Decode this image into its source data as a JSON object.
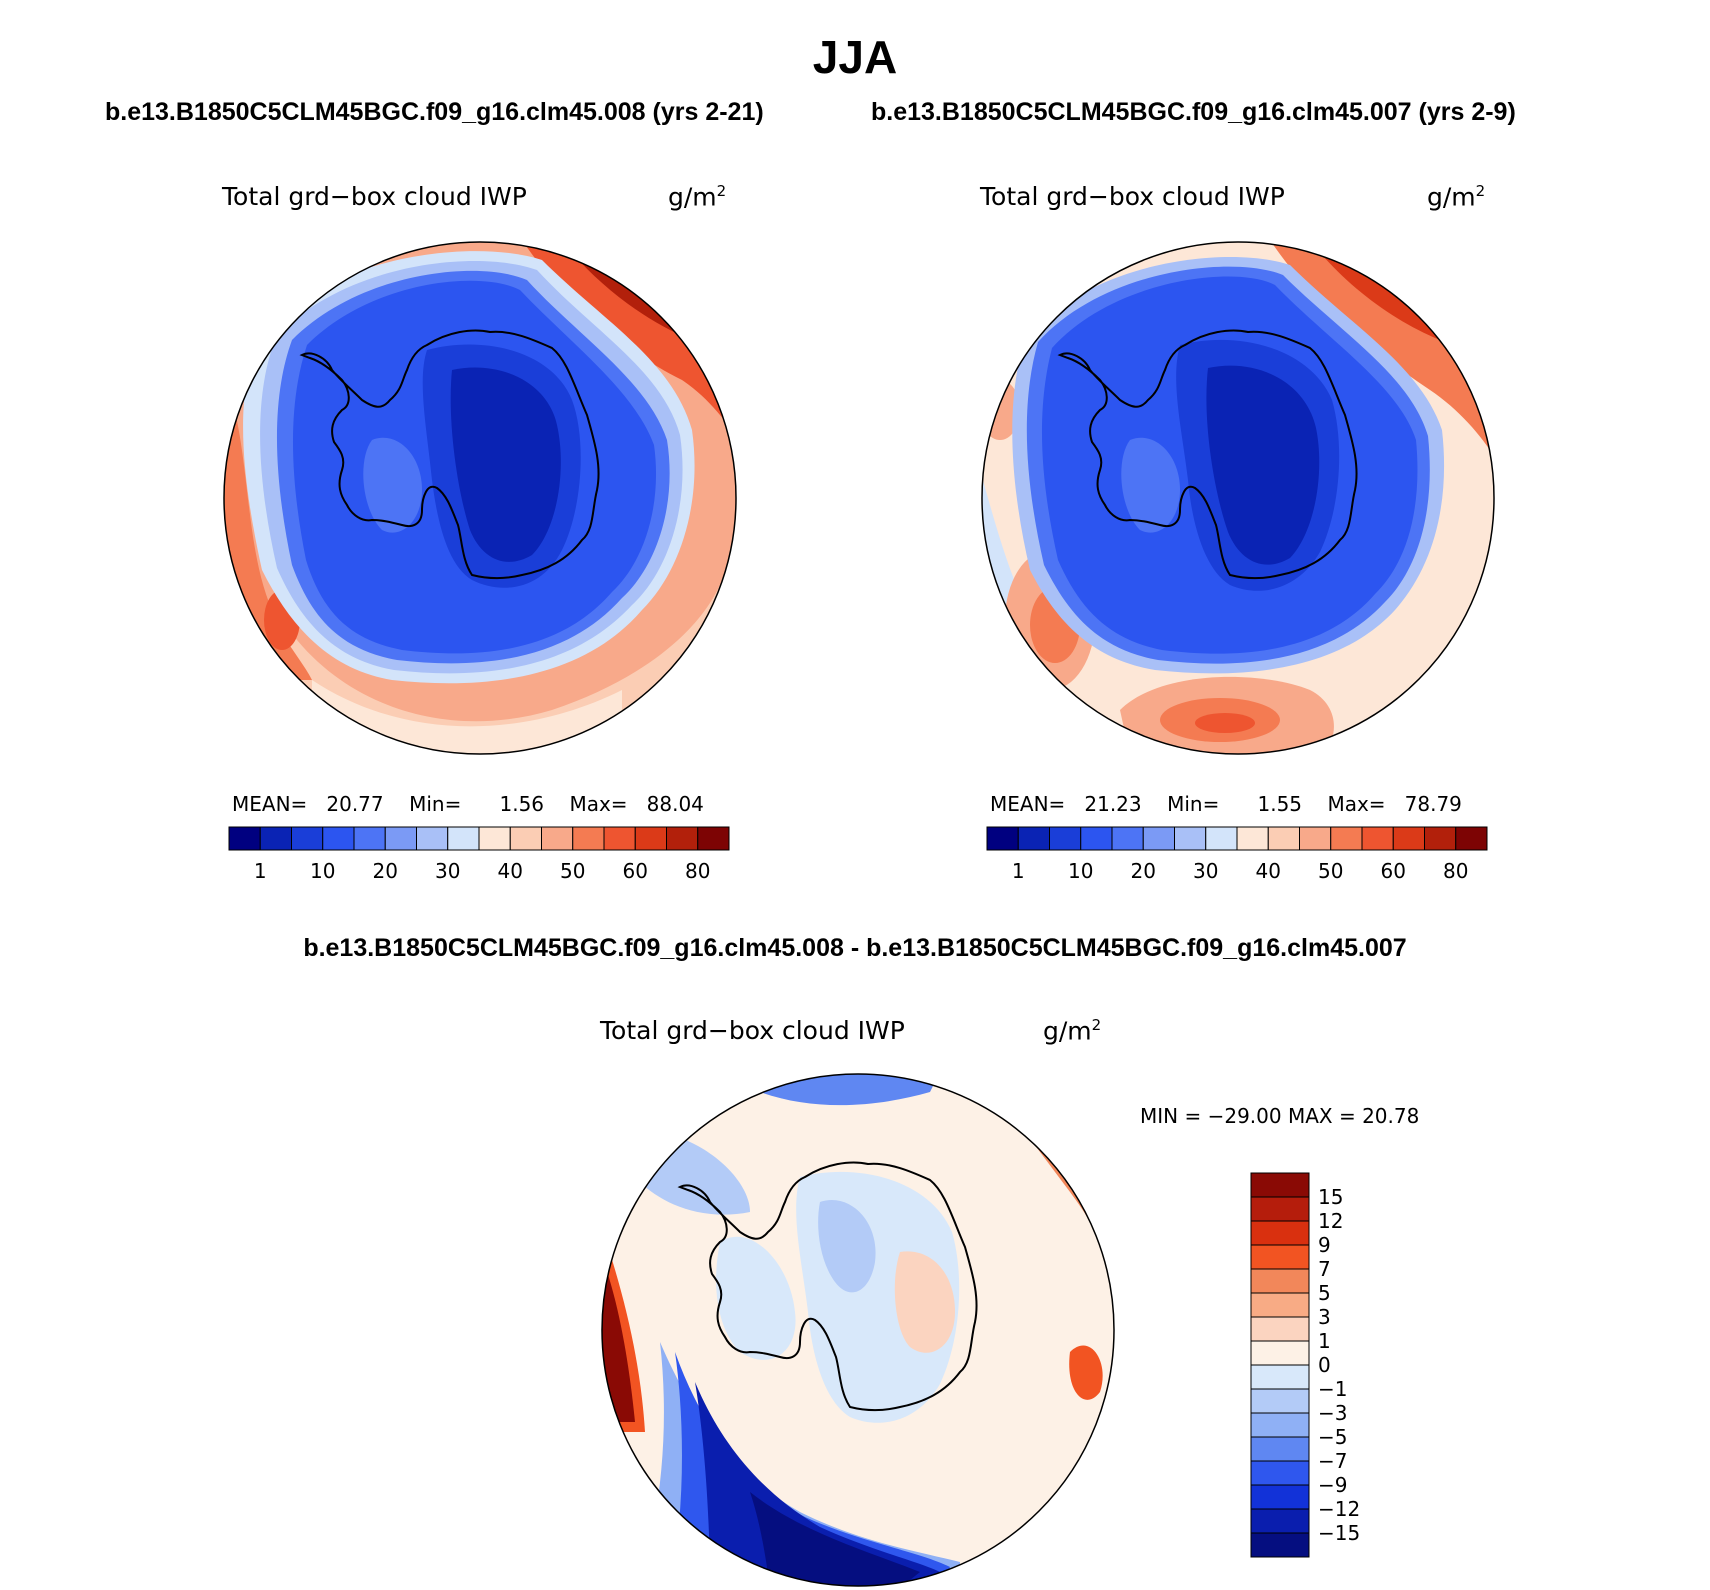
{
  "title": "JJA",
  "case1": "b.e13.B1850C5CLM45BGC.f09_g16.clm45.008 (yrs 2-21)",
  "case2": "b.e13.B1850C5CLM45BGC.f09_g16.clm45.007 (yrs 2-9)",
  "diff_title": "b.e13.B1850C5CLM45BGC.f09_g16.clm45.008 - b.e13.B1850C5CLM45BGC.f09_g16.clm45.007",
  "variable": "Total grd−box cloud IWP",
  "units": "g/m",
  "units_sup": "2",
  "panel1": {
    "mean_label": "MEAN=",
    "mean": "20.77",
    "min_label": "Min=",
    "min": "1.56",
    "max_label": "Max=",
    "max": "88.04"
  },
  "panel2": {
    "mean_label": "MEAN=",
    "mean": "21.23",
    "min_label": "Min=",
    "min": "1.55",
    "max_label": "Max=",
    "max": "78.79"
  },
  "panel3": {
    "minmax_text": "MIN = −29.00 MAX =   20.78"
  },
  "chart_data": [
    {
      "type": "heatmap",
      "projection": "south-polar stereographic",
      "title": "Total grd−box cloud IWP",
      "units": "g/m2",
      "case": "b.e13.B1850C5CLM45BGC.f09_g16.clm45.008 (yrs 2-21)",
      "mean": 20.77,
      "min": 1.56,
      "max": 88.04,
      "colorbar_labels": [
        "1",
        "10",
        "20",
        "30",
        "40",
        "50",
        "60",
        "80"
      ],
      "colors": [
        "#000080",
        "#0a23b4",
        "#1a3ed8",
        "#2c55f0",
        "#4d74f5",
        "#7b9af5",
        "#a9c0f7",
        "#d3e4fa",
        "#fde7d7",
        "#fbcdb4",
        "#f8a98a",
        "#f47b52",
        "#ee5530",
        "#db3a18",
        "#b2200b",
        "#7d0404"
      ]
    },
    {
      "type": "heatmap",
      "projection": "south-polar stereographic",
      "title": "Total grd−box cloud IWP",
      "units": "g/m2",
      "case": "b.e13.B1850C5CLM45BGC.f09_g16.clm45.007 (yrs 2-9)",
      "mean": 21.23,
      "min": 1.55,
      "max": 78.79,
      "colorbar_labels": [
        "1",
        "10",
        "20",
        "30",
        "40",
        "50",
        "60",
        "80"
      ],
      "colors": [
        "#000080",
        "#0a23b4",
        "#1a3ed8",
        "#2c55f0",
        "#4d74f5",
        "#7b9af5",
        "#a9c0f7",
        "#d3e4fa",
        "#fde7d7",
        "#fbcdb4",
        "#f8a98a",
        "#f47b52",
        "#ee5530",
        "#db3a18",
        "#b2200b",
        "#7d0404"
      ]
    },
    {
      "type": "heatmap",
      "projection": "south-polar stereographic",
      "title": "Total grd−box cloud IWP",
      "units": "g/m2",
      "case": "difference 008 - 007",
      "min": -29.0,
      "max": 20.78,
      "colorbar_labels": [
        "15",
        "12",
        "9",
        "7",
        "5",
        "3",
        "1",
        "0",
        "−1",
        "−3",
        "−5",
        "−7",
        "−9",
        "−12",
        "−15"
      ],
      "colors": [
        "#8a0a05",
        "#b51d0c",
        "#d9300f",
        "#f25422",
        "#f2875a",
        "#f8ab85",
        "#fbd4c0",
        "#fdf1e6",
        "#d8e8fa",
        "#b3cbf7",
        "#8fb0f5",
        "#5f87f2",
        "#2f57ee",
        "#1232d8",
        "#0a1eae",
        "#050e80"
      ]
    }
  ]
}
